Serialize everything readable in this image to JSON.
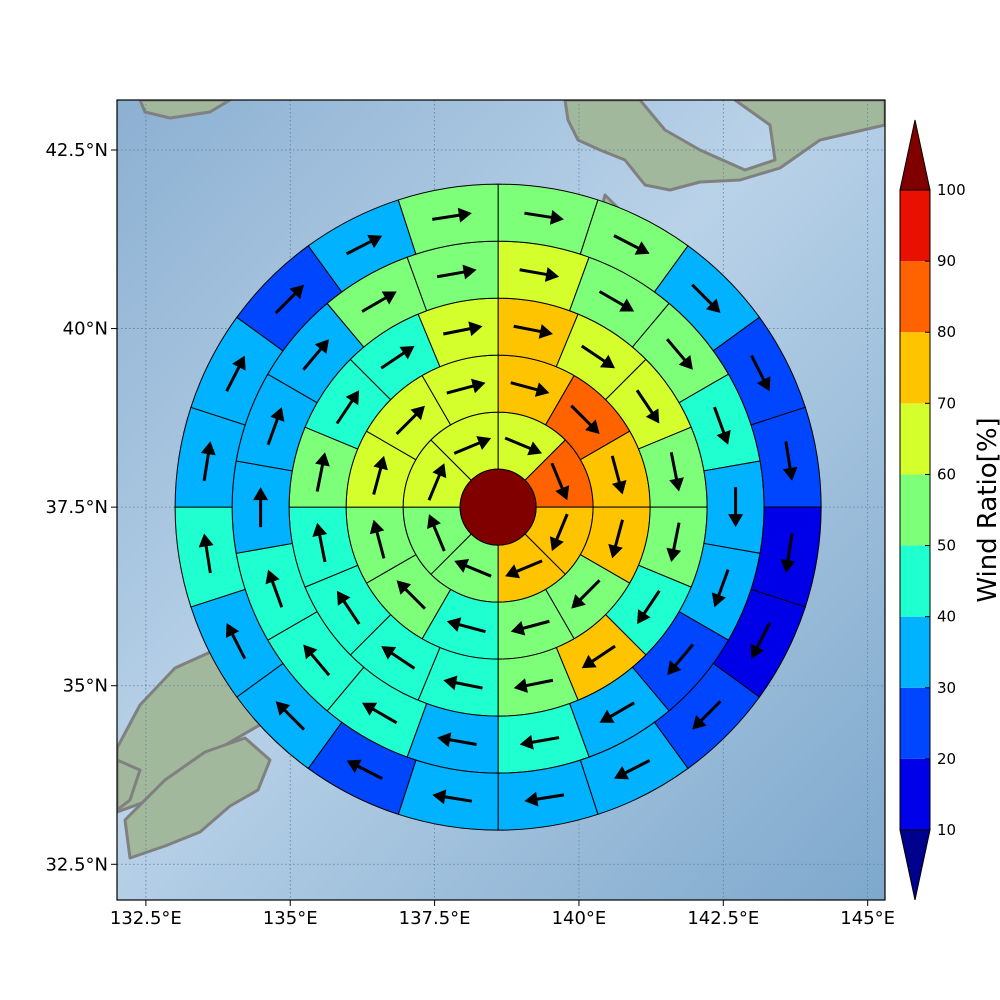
{
  "chart_data": {
    "type": "polar-sector-map",
    "title": "",
    "map": {
      "lon_range": [
        132.0,
        145.3
      ],
      "lat_range": [
        32.0,
        43.2
      ],
      "x_ticks": [
        132.5,
        135,
        137.5,
        140,
        142.5,
        145
      ],
      "x_tick_labels": [
        "132.5°E",
        "135°E",
        "137.5°E",
        "140°E",
        "142.5°E",
        "145°E"
      ],
      "y_ticks": [
        32.5,
        35,
        37.5,
        40,
        42.5
      ],
      "y_tick_labels": [
        "32.5°N",
        "35°N",
        "37.5°N",
        "40°N",
        "42.5°N"
      ],
      "grid": true,
      "ocean_color": "#94b8d6",
      "land_color": "#9fb59a",
      "coast_color": "#808080"
    },
    "center": {
      "lon": 138.6,
      "lat": 37.5,
      "value": 100
    },
    "rings": [
      {
        "ring": 1,
        "values": [
          65,
          85,
          75,
          75,
          55,
          55,
          65,
          65
        ]
      },
      {
        "ring": 2,
        "values": [
          75,
          85,
          75,
          75,
          55,
          55,
          45,
          55,
          55,
          65,
          65,
          65
        ]
      },
      {
        "ring": 3,
        "values": [
          75,
          65,
          65,
          55,
          55,
          45,
          75,
          55,
          45,
          45,
          45,
          45,
          55,
          45,
          45,
          65
        ]
      },
      {
        "ring": 4,
        "values": [
          65,
          55,
          55,
          45,
          35,
          35,
          25,
          35,
          45,
          35,
          45,
          45,
          45,
          35,
          35,
          35,
          55,
          55
        ]
      },
      {
        "ring": 5,
        "values": [
          55,
          55,
          35,
          25,
          25,
          15,
          15,
          25,
          35,
          35,
          35,
          25,
          35,
          35,
          45,
          35,
          35,
          25,
          35,
          55
        ]
      }
    ],
    "colorbar": {
      "label": "Wind Ratio[%]",
      "ticks": [
        10,
        20,
        30,
        40,
        50,
        60,
        70,
        80,
        90,
        100
      ],
      "boundaries": [
        10,
        20,
        30,
        40,
        50,
        60,
        70,
        80,
        90,
        100
      ],
      "colors": [
        "#0000e8",
        "#0046ff",
        "#00b2ff",
        "#20ffd0",
        "#7dff7a",
        "#d4ff2c",
        "#ffc400",
        "#ff6300",
        "#e81000"
      ],
      "under_color": "#00008f",
      "over_color": "#800000",
      "extend": "both"
    }
  }
}
